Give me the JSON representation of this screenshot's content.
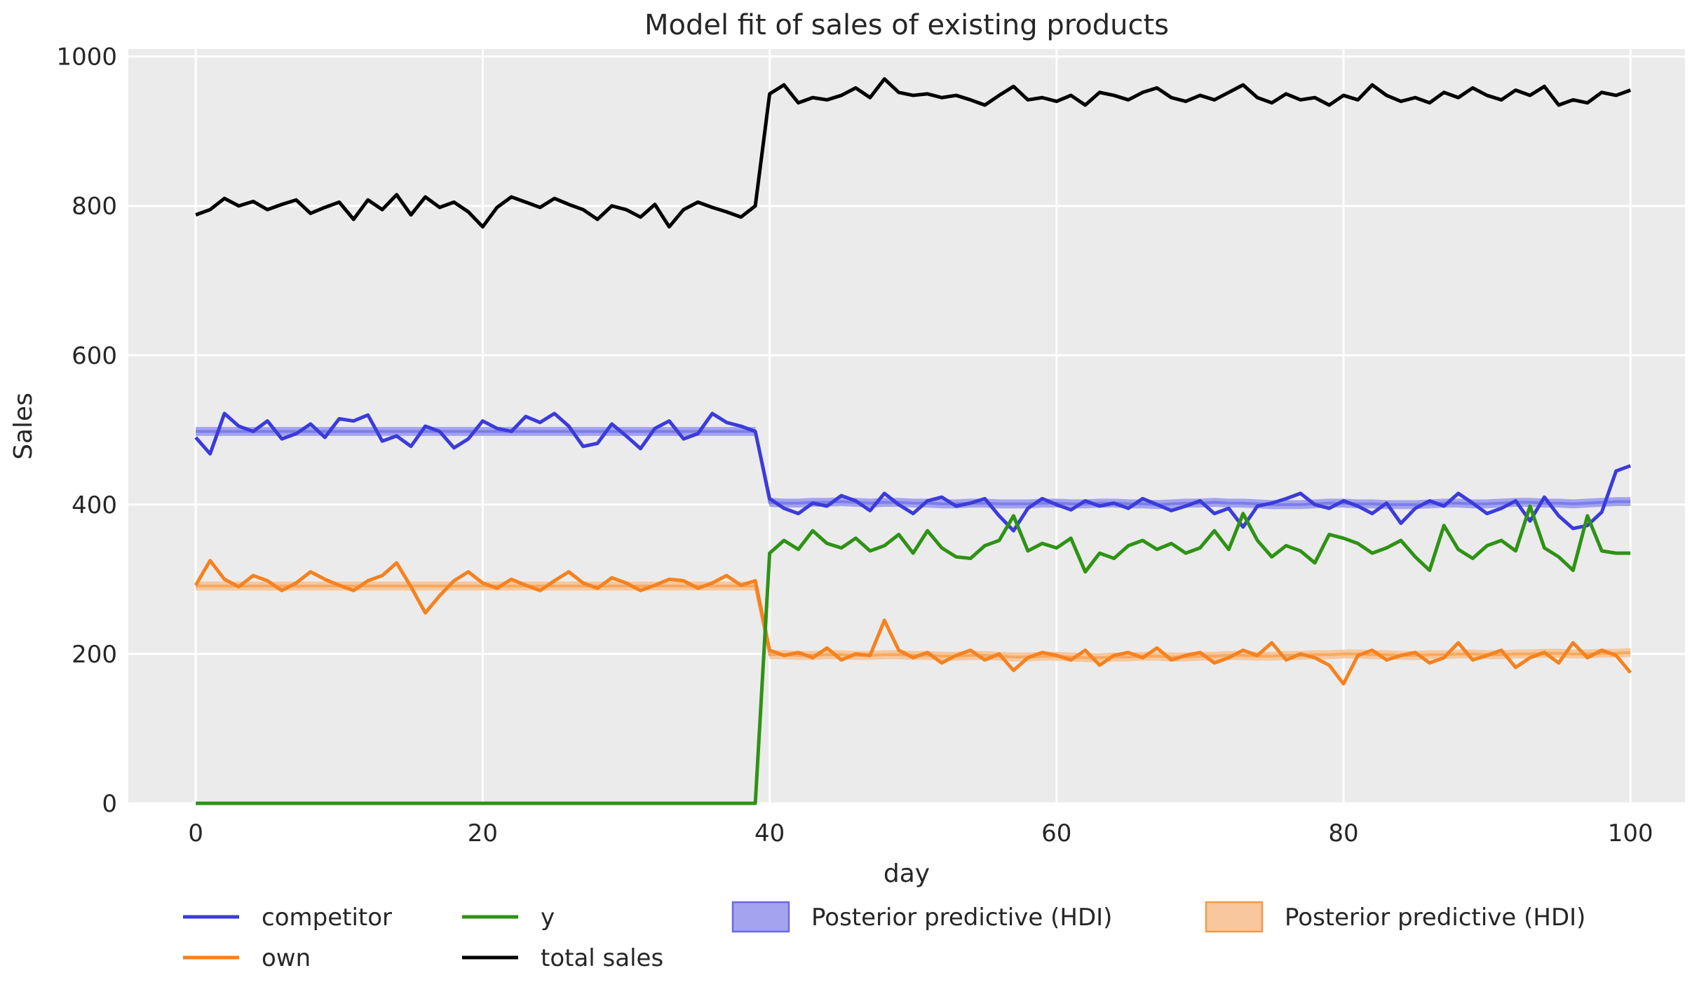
{
  "figure": {
    "background": "#ffffff"
  },
  "chart_data": {
    "type": "line",
    "title": "Model fit of sales of existing products",
    "xlabel": "day",
    "ylabel": "Sales",
    "xlim": [
      -4.7,
      103.8
    ],
    "ylim": [
      0,
      1010
    ],
    "xticks": [
      0,
      20,
      40,
      60,
      80,
      100
    ],
    "yticks": [
      0,
      200,
      400,
      600,
      800,
      1000
    ],
    "grid": true,
    "axes_background": "#ebebeb",
    "grid_color": "#ffffff",
    "text_color": "#262626",
    "legend_position": "below-left, 2 rows",
    "days": [
      0,
      1,
      2,
      3,
      4,
      5,
      6,
      7,
      8,
      9,
      10,
      11,
      12,
      13,
      14,
      15,
      16,
      17,
      18,
      19,
      20,
      21,
      22,
      23,
      24,
      25,
      26,
      27,
      28,
      29,
      30,
      31,
      32,
      33,
      34,
      35,
      36,
      37,
      38,
      39,
      40,
      41,
      42,
      43,
      44,
      45,
      46,
      47,
      48,
      49,
      50,
      51,
      52,
      53,
      54,
      55,
      56,
      57,
      58,
      59,
      60,
      61,
      62,
      63,
      64,
      65,
      66,
      67,
      68,
      69,
      70,
      71,
      72,
      73,
      74,
      75,
      76,
      77,
      78,
      79,
      80,
      81,
      82,
      83,
      84,
      85,
      86,
      87,
      88,
      89,
      90,
      91,
      92,
      93,
      94,
      95,
      96,
      97,
      98,
      99,
      100
    ],
    "series": [
      {
        "name": "competitor",
        "color": "#3b3bdb",
        "values": [
          490,
          468,
          522,
          505,
          498,
          512,
          488,
          495,
          508,
          490,
          515,
          512,
          520,
          485,
          492,
          478,
          505,
          498,
          476,
          488,
          512,
          502,
          498,
          518,
          510,
          522,
          505,
          478,
          482,
          508,
          492,
          475,
          502,
          512,
          488,
          495,
          522,
          510,
          505,
          498,
          408,
          395,
          388,
          402,
          398,
          412,
          405,
          392,
          415,
          400,
          388,
          405,
          410,
          398,
          402,
          408,
          385,
          365,
          395,
          408,
          400,
          393,
          405,
          398,
          402,
          395,
          408,
          400,
          392,
          398,
          405,
          388,
          395,
          370,
          398,
          402,
          408,
          415,
          400,
          395,
          405,
          398,
          388,
          402,
          375,
          395,
          405,
          398,
          415,
          402,
          388,
          395,
          405,
          378,
          410,
          385,
          368,
          372,
          390,
          445,
          452
        ]
      },
      {
        "name": "own",
        "color": "#f5821f",
        "values": [
          292,
          325,
          300,
          290,
          305,
          298,
          285,
          295,
          310,
          300,
          292,
          285,
          298,
          305,
          322,
          290,
          255,
          278,
          298,
          310,
          295,
          288,
          300,
          292,
          285,
          298,
          310,
          295,
          288,
          302,
          295,
          285,
          292,
          300,
          298,
          288,
          295,
          305,
          292,
          298,
          205,
          198,
          202,
          195,
          208,
          192,
          200,
          198,
          245,
          205,
          195,
          202,
          188,
          198,
          205,
          192,
          200,
          178,
          195,
          202,
          198,
          192,
          205,
          185,
          198,
          202,
          195,
          208,
          192,
          198,
          202,
          188,
          195,
          205,
          198,
          215,
          192,
          200,
          195,
          185,
          160,
          198,
          205,
          192,
          198,
          202,
          188,
          195,
          215,
          192,
          198,
          205,
          182,
          195,
          202,
          188,
          215,
          195,
          205,
          198,
          175
        ]
      },
      {
        "name": "y",
        "color": "#2e9314",
        "values": [
          0,
          0,
          0,
          0,
          0,
          0,
          0,
          0,
          0,
          0,
          0,
          0,
          0,
          0,
          0,
          0,
          0,
          0,
          0,
          0,
          0,
          0,
          0,
          0,
          0,
          0,
          0,
          0,
          0,
          0,
          0,
          0,
          0,
          0,
          0,
          0,
          0,
          0,
          0,
          0,
          335,
          352,
          340,
          365,
          348,
          342,
          355,
          338,
          345,
          360,
          335,
          365,
          342,
          330,
          328,
          345,
          352,
          385,
          338,
          348,
          342,
          355,
          310,
          335,
          328,
          345,
          352,
          340,
          348,
          335,
          342,
          365,
          340,
          388,
          352,
          330,
          345,
          338,
          322,
          360,
          355,
          348,
          335,
          342,
          352,
          330,
          312,
          372,
          340,
          328,
          345,
          352,
          338,
          398,
          342,
          330,
          312,
          385,
          338,
          335,
          335
        ]
      },
      {
        "name": "total sales",
        "color": "#000000",
        "values": [
          788,
          795,
          810,
          800,
          806,
          795,
          802,
          808,
          790,
          798,
          805,
          782,
          808,
          795,
          815,
          788,
          812,
          798,
          805,
          792,
          772,
          798,
          812,
          805,
          798,
          810,
          802,
          795,
          782,
          800,
          795,
          785,
          802,
          772,
          795,
          805,
          798,
          792,
          785,
          800,
          950,
          962,
          938,
          945,
          942,
          948,
          958,
          945,
          970,
          952,
          948,
          950,
          945,
          948,
          942,
          935,
          948,
          960,
          942,
          945,
          940,
          948,
          935,
          952,
          948,
          942,
          952,
          958,
          945,
          940,
          948,
          942,
          952,
          962,
          945,
          938,
          950,
          942,
          945,
          935,
          948,
          942,
          962,
          948,
          940,
          945,
          938,
          952,
          945,
          958,
          948,
          942,
          955,
          948,
          960,
          935,
          942,
          938,
          952,
          948,
          955
        ]
      }
    ],
    "hdi_bands": [
      {
        "name": "Posterior predictive (HDI)",
        "series": "competitor",
        "fill": "#a3a3ef",
        "mean_color": "#7d7de8",
        "edge": "#6a6ae4",
        "segments": [
          {
            "from": 0,
            "to": 39,
            "lower": 492,
            "upper": 504
          },
          {
            "from": 40,
            "to": 100,
            "lower": [
              397,
              396,
              396,
              397,
              397,
              398,
              397,
              396,
              397,
              397,
              396,
              396,
              395,
              395,
              396,
              396,
              395,
              395,
              395,
              396,
              396,
              395,
              395,
              396,
              396,
              395,
              395,
              394,
              395,
              396,
              396,
              397,
              396,
              396,
              395,
              394,
              394,
              394,
              395,
              396,
              396,
              395,
              395,
              394,
              394,
              394,
              395,
              396,
              396,
              395,
              395,
              396,
              397,
              397,
              396,
              396,
              395,
              396,
              397,
              398,
              398
            ],
            "upper": [
              409,
              408,
              408,
              409,
              409,
              410,
              409,
              408,
              409,
              409,
              408,
              408,
              407,
              407,
              408,
              408,
              407,
              407,
              407,
              408,
              408,
              407,
              407,
              408,
              408,
              407,
              407,
              406,
              407,
              408,
              408,
              409,
              408,
              408,
              407,
              406,
              406,
              406,
              407,
              408,
              408,
              407,
              407,
              406,
              406,
              406,
              407,
              408,
              408,
              407,
              407,
              408,
              409,
              409,
              408,
              408,
              407,
              408,
              409,
              410,
              410
            ]
          }
        ]
      },
      {
        "name": "Posterior predictive (HDI)",
        "series": "own",
        "fill": "#f8c79d",
        "mean_color": "#f5aa62",
        "edge": "#f09b4a",
        "segments": [
          {
            "from": 0,
            "to": 39,
            "lower": 285,
            "upper": 297
          },
          {
            "from": 40,
            "to": 100,
            "lower": [
              193,
              193,
              192,
              192,
              193,
              193,
              192,
              192,
              193,
              193,
              192,
              192,
              191,
              191,
              192,
              192,
              191,
              190,
              190,
              191,
              191,
              190,
              189,
              189,
              190,
              190,
              191,
              191,
              190,
              190,
              191,
              191,
              192,
              192,
              191,
              191,
              192,
              192,
              193,
              193,
              194,
              194,
              193,
              193,
              192,
              192,
              193,
              193,
              194,
              194,
              193,
              193,
              194,
              194,
              195,
              195,
              194,
              194,
              195,
              195,
              196
            ],
            "upper": [
              205,
              205,
              204,
              204,
              205,
              205,
              204,
              204,
              205,
              205,
              204,
              204,
              203,
              203,
              204,
              204,
              203,
              202,
              202,
              203,
              203,
              202,
              201,
              201,
              202,
              202,
              203,
              203,
              202,
              202,
              203,
              203,
              204,
              204,
              203,
              203,
              204,
              204,
              205,
              205,
              206,
              206,
              205,
              205,
              204,
              204,
              205,
              205,
              206,
              206,
              205,
              205,
              206,
              206,
              207,
              207,
              206,
              206,
              207,
              207,
              208
            ]
          }
        ]
      }
    ],
    "legend": {
      "items": [
        {
          "label": "competitor",
          "swatch": "line",
          "color": "#3b3bdb"
        },
        {
          "label": "own",
          "swatch": "line",
          "color": "#f5821f"
        },
        {
          "label": "y",
          "swatch": "line",
          "color": "#2e9314"
        },
        {
          "label": "total sales",
          "swatch": "line",
          "color": "#000000"
        },
        {
          "label": "Posterior predictive (HDI)",
          "swatch": "patch",
          "color": "#a3a3ef",
          "edge": "#6a6ae4"
        },
        {
          "label": "Posterior predictive (HDI)",
          "swatch": "patch",
          "color": "#f8c79d",
          "edge": "#f09b4a"
        }
      ]
    }
  }
}
